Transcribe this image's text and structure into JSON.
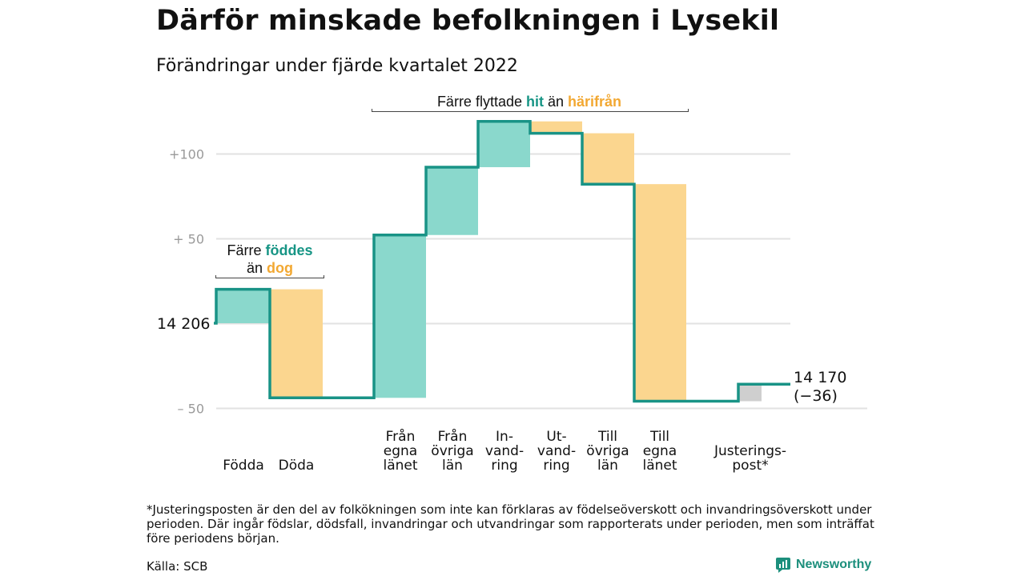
{
  "title": "Därför minskade befolkningen i Lysekil",
  "subtitle": "Förändringar under fjärde kvartalet 2022",
  "colors": {
    "increase": "#8ad8cc",
    "decrease": "#fbd68f",
    "adjustment": "#cfcfcf",
    "line": "#199386",
    "teal_text": "#179585",
    "orange_text": "#f2a832",
    "grid": "#e2e2e2"
  },
  "chart_data": {
    "type": "waterfall",
    "start_value": 14206,
    "start_label": "14 206",
    "end_value": 14170,
    "end_label": "14 170",
    "end_change_label": "(−36)",
    "y_ticks": [
      {
        "value": 100,
        "label": "+100"
      },
      {
        "value": 50,
        "label": "+ 50"
      },
      {
        "value": 0,
        "label": ""
      },
      {
        "value": -50,
        "label": "– 50"
      }
    ],
    "ylim": [
      -52,
      120
    ],
    "grid": true,
    "steps": [
      {
        "label_lines": [
          "Födda"
        ],
        "change": 20,
        "kind": "increase"
      },
      {
        "label_lines": [
          "Döda"
        ],
        "change": -64,
        "kind": "decrease"
      },
      {
        "label_lines": [
          "Från",
          "egna",
          "länet"
        ],
        "change": 96,
        "kind": "increase"
      },
      {
        "label_lines": [
          "Från",
          "övriga",
          "län"
        ],
        "change": 40,
        "kind": "increase"
      },
      {
        "label_lines": [
          "In-",
          "vand-",
          "ring"
        ],
        "change": 27,
        "kind": "increase"
      },
      {
        "label_lines": [
          "Ut-",
          "vand-",
          "ring"
        ],
        "change": -7,
        "kind": "decrease"
      },
      {
        "label_lines": [
          "Till",
          "övriga",
          "län"
        ],
        "change": -30,
        "kind": "decrease"
      },
      {
        "label_lines": [
          "Till",
          "egna",
          "länet"
        ],
        "change": -128,
        "kind": "decrease"
      },
      {
        "label_lines": [
          "Justerings-",
          "post*"
        ],
        "change": 10,
        "kind": "adjustment"
      }
    ],
    "annotations": {
      "natural": {
        "line1_prefix": "Färre ",
        "line1_highlight": "föddes",
        "line2_prefix": "än ",
        "line2_highlight": "dog"
      },
      "migration": {
        "prefix": "Färre flyttade ",
        "highlight1": "hit",
        "middle": " än ",
        "highlight2": "härifrån"
      }
    }
  },
  "footnote": "*Justeringsposten är den del av folkökningen som inte kan förklaras av födelseöverskott och invandringsöverskott under perioden. Där ingår födslar, dödsfall, invandringar och utvandringar som rapporterats under perioden, men som inträffat före periodens början.",
  "source": "Källa: SCB",
  "brand": "Newsworthy"
}
